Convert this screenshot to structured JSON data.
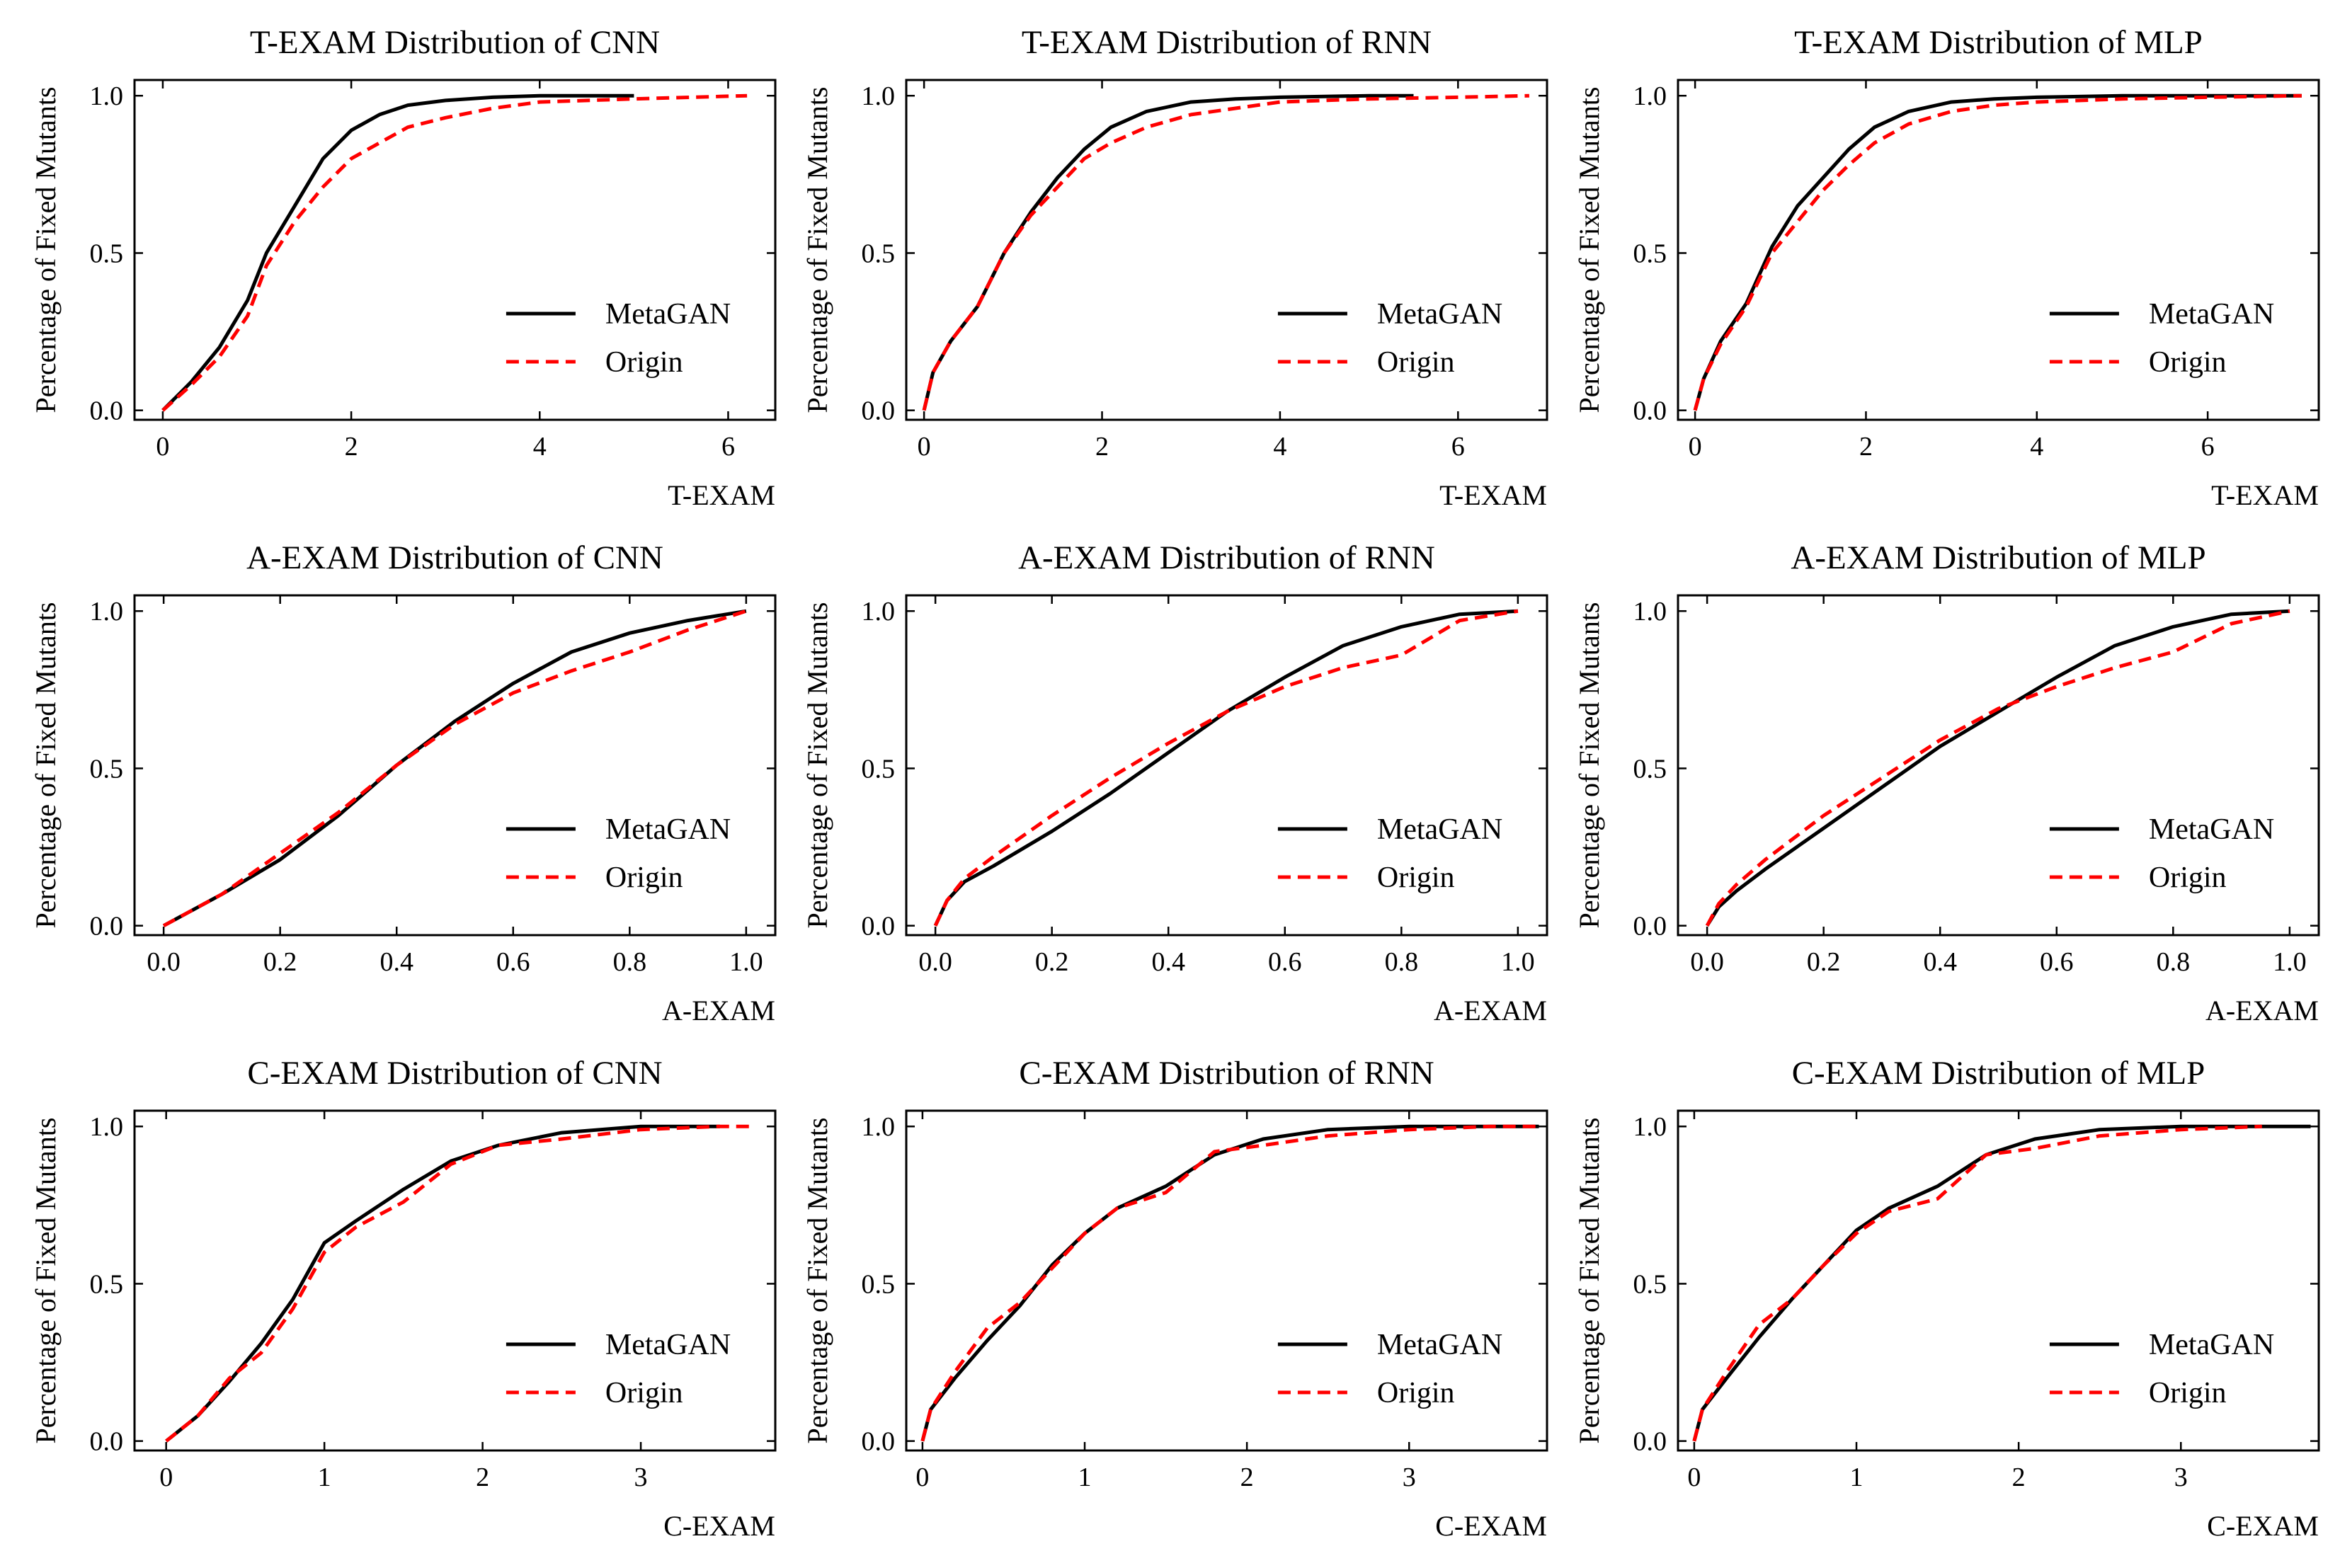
{
  "figure": {
    "ylabel": "Percentage of Fixed Mutants",
    "legend": [
      "MetaGAN",
      "Origin"
    ]
  },
  "colors": {
    "metagan": "#000000",
    "origin": "#ff0000",
    "axis": "#000000"
  },
  "chart_data": [
    {
      "type": "line",
      "title": "T-EXAM Distribution of CNN",
      "xlabel": "T-EXAM",
      "ylabel": "Percentage of Fixed Mutants",
      "xlim": [
        -0.3,
        6.5
      ],
      "ylim": [
        -0.03,
        1.05
      ],
      "xticks": [
        0,
        2,
        4,
        6
      ],
      "xticklabels": [
        "0",
        "2",
        "4",
        "6"
      ],
      "yticks": [
        0,
        0.5,
        1.0
      ],
      "yticklabels": [
        "0.0",
        "0.5",
        "1.0"
      ],
      "legend": "center-right",
      "series": [
        {
          "name": "MetaGAN",
          "x": [
            0,
            0.3,
            0.6,
            0.9,
            1.1,
            1.4,
            1.7,
            2.0,
            2.3,
            2.6,
            3.0,
            3.5,
            4.0,
            5.0
          ],
          "y": [
            0,
            0.09,
            0.2,
            0.35,
            0.5,
            0.65,
            0.8,
            0.89,
            0.94,
            0.97,
            0.985,
            0.995,
            1.0,
            1.0
          ]
        },
        {
          "name": "Origin",
          "x": [
            0,
            0.3,
            0.6,
            0.9,
            1.1,
            1.4,
            1.7,
            2.0,
            2.3,
            2.6,
            3.0,
            3.5,
            4.0,
            5.0,
            6.2
          ],
          "y": [
            0,
            0.08,
            0.17,
            0.3,
            0.46,
            0.6,
            0.71,
            0.8,
            0.85,
            0.9,
            0.93,
            0.96,
            0.98,
            0.99,
            1.0
          ]
        }
      ]
    },
    {
      "type": "line",
      "title": "T-EXAM Distribution of RNN",
      "xlabel": "T-EXAM",
      "ylabel": "Percentage of Fixed Mutants",
      "xlim": [
        -0.2,
        7.0
      ],
      "ylim": [
        -0.03,
        1.05
      ],
      "xticks": [
        0,
        2,
        4,
        6
      ],
      "xticklabels": [
        "0",
        "2",
        "4",
        "6"
      ],
      "yticks": [
        0,
        0.5,
        1.0
      ],
      "yticklabels": [
        "0.0",
        "0.5",
        "1.0"
      ],
      "legend": "center-right",
      "series": [
        {
          "name": "MetaGAN",
          "x": [
            0,
            0.1,
            0.3,
            0.6,
            0.9,
            1.2,
            1.5,
            1.8,
            2.1,
            2.5,
            3.0,
            3.5,
            4.0,
            5.0,
            5.5
          ],
          "y": [
            0,
            0.12,
            0.22,
            0.33,
            0.5,
            0.63,
            0.74,
            0.83,
            0.9,
            0.95,
            0.98,
            0.99,
            0.995,
            1.0,
            1.0
          ]
        },
        {
          "name": "Origin",
          "x": [
            0,
            0.1,
            0.3,
            0.6,
            0.9,
            1.2,
            1.5,
            1.8,
            2.1,
            2.5,
            3.0,
            3.5,
            4.0,
            5.0,
            6.0,
            6.8
          ],
          "y": [
            0,
            0.12,
            0.22,
            0.33,
            0.5,
            0.62,
            0.71,
            0.8,
            0.85,
            0.9,
            0.94,
            0.96,
            0.98,
            0.99,
            0.995,
            1.0
          ]
        }
      ]
    },
    {
      "type": "line",
      "title": "T-EXAM Distribution of MLP",
      "xlabel": "T-EXAM",
      "ylabel": "Percentage of Fixed Mutants",
      "xlim": [
        -0.2,
        7.3
      ],
      "ylim": [
        -0.03,
        1.05
      ],
      "xticks": [
        0,
        2,
        4,
        6
      ],
      "xticklabels": [
        "0",
        "2",
        "4",
        "6"
      ],
      "yticks": [
        0,
        0.5,
        1.0
      ],
      "yticklabels": [
        "0.0",
        "0.5",
        "1.0"
      ],
      "legend": "center-right",
      "series": [
        {
          "name": "MetaGAN",
          "x": [
            0,
            0.1,
            0.3,
            0.6,
            0.9,
            1.2,
            1.5,
            1.8,
            2.1,
            2.5,
            3.0,
            3.5,
            4.0,
            5.0,
            6.0,
            7.1
          ],
          "y": [
            0,
            0.1,
            0.22,
            0.34,
            0.52,
            0.65,
            0.74,
            0.83,
            0.9,
            0.95,
            0.98,
            0.99,
            0.995,
            1.0,
            1.0,
            1.0
          ]
        },
        {
          "name": "Origin",
          "x": [
            0,
            0.1,
            0.3,
            0.6,
            0.9,
            1.2,
            1.5,
            1.8,
            2.1,
            2.5,
            3.0,
            3.5,
            4.0,
            5.0,
            6.0,
            7.1
          ],
          "y": [
            0,
            0.1,
            0.21,
            0.33,
            0.5,
            0.6,
            0.7,
            0.78,
            0.85,
            0.91,
            0.95,
            0.97,
            0.98,
            0.99,
            0.995,
            1.0
          ]
        }
      ]
    },
    {
      "type": "line",
      "title": "A-EXAM Distribution of CNN",
      "xlabel": "A-EXAM",
      "ylabel": "Percentage of Fixed Mutants",
      "xlim": [
        -0.05,
        1.05
      ],
      "ylim": [
        -0.03,
        1.05
      ],
      "xticks": [
        0,
        0.2,
        0.4,
        0.6,
        0.8,
        1.0
      ],
      "xticklabels": [
        "0.0",
        "0.2",
        "0.4",
        "0.6",
        "0.8",
        "1.0"
      ],
      "yticks": [
        0,
        0.5,
        1.0
      ],
      "yticklabels": [
        "0.0",
        "0.5",
        "1.0"
      ],
      "legend": "center-right",
      "series": [
        {
          "name": "MetaGAN",
          "x": [
            0,
            0.05,
            0.1,
            0.2,
            0.3,
            0.4,
            0.5,
            0.6,
            0.7,
            0.8,
            0.9,
            1.0
          ],
          "y": [
            0,
            0.05,
            0.1,
            0.21,
            0.35,
            0.51,
            0.65,
            0.77,
            0.87,
            0.93,
            0.97,
            1.0
          ]
        },
        {
          "name": "Origin",
          "x": [
            0,
            0.05,
            0.1,
            0.2,
            0.3,
            0.4,
            0.5,
            0.6,
            0.7,
            0.8,
            0.9,
            1.0
          ],
          "y": [
            0,
            0.05,
            0.1,
            0.23,
            0.36,
            0.51,
            0.64,
            0.74,
            0.81,
            0.87,
            0.94,
            1.0
          ]
        }
      ]
    },
    {
      "type": "line",
      "title": "A-EXAM Distribution of RNN",
      "xlabel": "A-EXAM",
      "ylabel": "Percentage of Fixed Mutants",
      "xlim": [
        -0.05,
        1.05
      ],
      "ylim": [
        -0.03,
        1.05
      ],
      "xticks": [
        0,
        0.2,
        0.4,
        0.6,
        0.8,
        1.0
      ],
      "xticklabels": [
        "0.0",
        "0.2",
        "0.4",
        "0.6",
        "0.8",
        "1.0"
      ],
      "yticks": [
        0,
        0.5,
        1.0
      ],
      "yticklabels": [
        "0.0",
        "0.5",
        "1.0"
      ],
      "legend": "center-right",
      "series": [
        {
          "name": "MetaGAN",
          "x": [
            0,
            0.02,
            0.05,
            0.1,
            0.2,
            0.3,
            0.4,
            0.5,
            0.6,
            0.7,
            0.8,
            0.9,
            1.0
          ],
          "y": [
            0,
            0.08,
            0.14,
            0.19,
            0.3,
            0.42,
            0.55,
            0.68,
            0.79,
            0.89,
            0.95,
            0.99,
            1.0
          ]
        },
        {
          "name": "Origin",
          "x": [
            0,
            0.02,
            0.05,
            0.1,
            0.2,
            0.3,
            0.4,
            0.5,
            0.6,
            0.7,
            0.8,
            0.9,
            1.0
          ],
          "y": [
            0,
            0.08,
            0.15,
            0.22,
            0.35,
            0.47,
            0.58,
            0.68,
            0.76,
            0.82,
            0.86,
            0.97,
            1.0
          ]
        }
      ]
    },
    {
      "type": "line",
      "title": "A-EXAM Distribution of MLP",
      "xlabel": "A-EXAM",
      "ylabel": "Percentage of Fixed Mutants",
      "xlim": [
        -0.05,
        1.05
      ],
      "ylim": [
        -0.03,
        1.05
      ],
      "xticks": [
        0,
        0.2,
        0.4,
        0.6,
        0.8,
        1.0
      ],
      "xticklabels": [
        "0.0",
        "0.2",
        "0.4",
        "0.6",
        "0.8",
        "1.0"
      ],
      "yticks": [
        0,
        0.5,
        1.0
      ],
      "yticklabels": [
        "0.0",
        "0.5",
        "1.0"
      ],
      "legend": "center-right",
      "series": [
        {
          "name": "MetaGAN",
          "x": [
            0,
            0.02,
            0.05,
            0.1,
            0.2,
            0.3,
            0.4,
            0.5,
            0.6,
            0.7,
            0.8,
            0.9,
            1.0
          ],
          "y": [
            0,
            0.06,
            0.11,
            0.18,
            0.31,
            0.44,
            0.57,
            0.68,
            0.79,
            0.89,
            0.95,
            0.99,
            1.0
          ]
        },
        {
          "name": "Origin",
          "x": [
            0,
            0.02,
            0.05,
            0.1,
            0.2,
            0.3,
            0.4,
            0.5,
            0.6,
            0.7,
            0.8,
            0.9,
            1.0
          ],
          "y": [
            0,
            0.07,
            0.13,
            0.21,
            0.35,
            0.47,
            0.59,
            0.69,
            0.76,
            0.82,
            0.87,
            0.96,
            1.0
          ]
        }
      ]
    },
    {
      "type": "line",
      "title": "C-EXAM Distribution of CNN",
      "xlabel": "C-EXAM",
      "ylabel": "Percentage of Fixed Mutants",
      "xlim": [
        -0.2,
        3.85
      ],
      "ylim": [
        -0.03,
        1.05
      ],
      "xticks": [
        0,
        1,
        2,
        3
      ],
      "xticklabels": [
        "0",
        "1",
        "2",
        "3"
      ],
      "yticks": [
        0,
        0.5,
        1.0
      ],
      "yticklabels": [
        "0.0",
        "0.5",
        "1.0"
      ],
      "legend": "center-right",
      "series": [
        {
          "name": "MetaGAN",
          "x": [
            0,
            0.2,
            0.4,
            0.6,
            0.8,
            1.0,
            1.2,
            1.5,
            1.8,
            2.1,
            2.5,
            3.0,
            3.5
          ],
          "y": [
            0,
            0.08,
            0.19,
            0.31,
            0.45,
            0.63,
            0.7,
            0.8,
            0.89,
            0.94,
            0.98,
            1.0,
            1.0
          ]
        },
        {
          "name": "Origin",
          "x": [
            0,
            0.2,
            0.4,
            0.6,
            0.8,
            1.0,
            1.2,
            1.5,
            1.8,
            2.1,
            2.5,
            3.0,
            3.5,
            3.7
          ],
          "y": [
            0,
            0.08,
            0.2,
            0.28,
            0.42,
            0.6,
            0.68,
            0.76,
            0.88,
            0.94,
            0.96,
            0.99,
            1.0,
            1.0
          ]
        }
      ]
    },
    {
      "type": "line",
      "title": "C-EXAM Distribution of RNN",
      "xlabel": "C-EXAM",
      "ylabel": "Percentage of Fixed Mutants",
      "xlim": [
        -0.1,
        3.85
      ],
      "ylim": [
        -0.03,
        1.05
      ],
      "xticks": [
        0,
        1,
        2,
        3
      ],
      "xticklabels": [
        "0",
        "1",
        "2",
        "3"
      ],
      "yticks": [
        0,
        0.5,
        1.0
      ],
      "yticklabels": [
        "0.0",
        "0.5",
        "1.0"
      ],
      "legend": "center-right",
      "series": [
        {
          "name": "MetaGAN",
          "x": [
            0,
            0.05,
            0.2,
            0.4,
            0.6,
            0.8,
            1.0,
            1.2,
            1.5,
            1.8,
            2.1,
            2.5,
            3.0,
            3.8
          ],
          "y": [
            0,
            0.1,
            0.2,
            0.32,
            0.43,
            0.56,
            0.66,
            0.74,
            0.81,
            0.91,
            0.96,
            0.99,
            1.0,
            1.0
          ]
        },
        {
          "name": "Origin",
          "x": [
            0,
            0.05,
            0.2,
            0.4,
            0.6,
            0.8,
            1.0,
            1.2,
            1.5,
            1.8,
            2.1,
            2.5,
            3.0,
            3.5,
            3.8
          ],
          "y": [
            0,
            0.1,
            0.22,
            0.36,
            0.44,
            0.55,
            0.66,
            0.74,
            0.79,
            0.92,
            0.94,
            0.97,
            0.99,
            1.0,
            1.0
          ]
        }
      ]
    },
    {
      "type": "line",
      "title": "C-EXAM Distribution of MLP",
      "xlabel": "C-EXAM",
      "ylabel": "Percentage of Fixed Mutants",
      "xlim": [
        -0.1,
        3.85
      ],
      "ylim": [
        -0.03,
        1.05
      ],
      "xticks": [
        0,
        1,
        2,
        3
      ],
      "xticklabels": [
        "0",
        "1",
        "2",
        "3"
      ],
      "yticks": [
        0,
        0.5,
        1.0
      ],
      "yticklabels": [
        "0.0",
        "0.5",
        "1.0"
      ],
      "legend": "center-right",
      "series": [
        {
          "name": "MetaGAN",
          "x": [
            0,
            0.05,
            0.2,
            0.4,
            0.6,
            0.8,
            1.0,
            1.2,
            1.5,
            1.8,
            2.1,
            2.5,
            3.0,
            3.8
          ],
          "y": [
            0,
            0.1,
            0.2,
            0.33,
            0.45,
            0.56,
            0.67,
            0.74,
            0.81,
            0.91,
            0.96,
            0.99,
            1.0,
            1.0
          ]
        },
        {
          "name": "Origin",
          "x": [
            0,
            0.05,
            0.2,
            0.4,
            0.6,
            0.8,
            1.0,
            1.2,
            1.5,
            1.8,
            2.1,
            2.5,
            3.0,
            3.5
          ],
          "y": [
            0,
            0.1,
            0.22,
            0.37,
            0.45,
            0.56,
            0.66,
            0.73,
            0.77,
            0.91,
            0.93,
            0.97,
            0.99,
            1.0
          ]
        }
      ]
    }
  ]
}
